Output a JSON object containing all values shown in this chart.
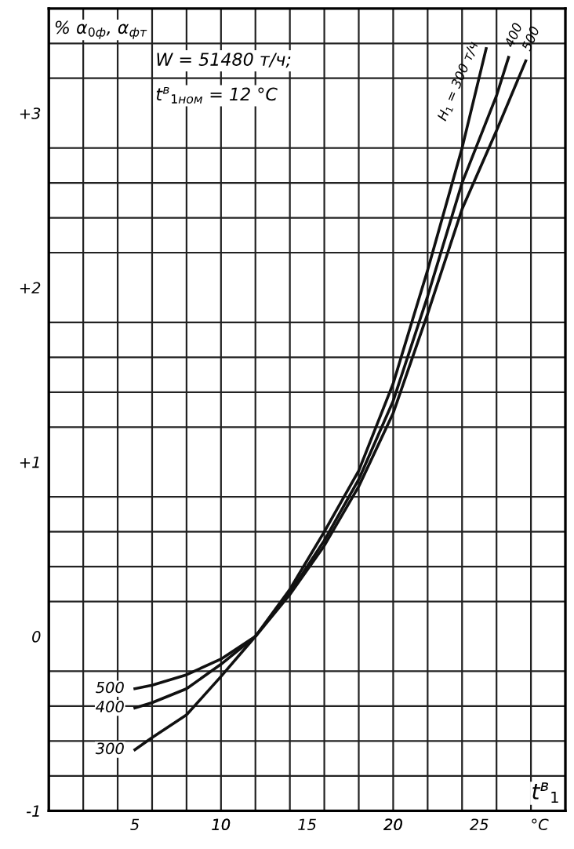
{
  "chart_data": {
    "type": "line",
    "ylabel": "% α$_{0ф}$, α$_{фт}$",
    "xlabel": "t$^{в}$$_{1}$",
    "annotations": [
      "W = 51480 т/ч;",
      "t$^{в}$$_{1ном}$ = 12 °C",
      {
        "text": "Н$_{1}$ = 300 т/ч",
        "x": 25.4,
        "y": 3.37
      },
      {
        "text": "400",
        "x": 26.7,
        "y": 3.32
      },
      {
        "text": "500",
        "x": 27.7,
        "y": 3.3
      },
      {
        "text": "500",
        "x": 5,
        "y": -0.3
      },
      {
        "text": "400",
        "x": 5,
        "y": -0.41
      },
      {
        "text": "300",
        "x": 5,
        "y": -0.65
      }
    ],
    "series": [
      {
        "color": "#111111",
        "x": [
          5,
          6,
          8,
          10,
          12,
          14,
          16,
          18,
          20,
          22,
          24,
          25.4
        ],
        "values": [
          -0.65,
          -0.58,
          -0.45,
          -0.23,
          0,
          0.27,
          0.6,
          0.95,
          1.45,
          2.1,
          2.8,
          3.37
        ]
      },
      {
        "color": "#111111",
        "x": [
          5,
          6,
          8,
          10,
          12,
          14,
          16,
          18,
          20,
          22,
          24,
          26,
          26.7
        ],
        "values": [
          -0.41,
          -0.38,
          -0.3,
          -0.16,
          0,
          0.25,
          0.55,
          0.9,
          1.35,
          1.95,
          2.6,
          3.1,
          3.32
        ]
      },
      {
        "color": "#111111",
        "x": [
          5,
          6,
          8,
          10,
          12,
          14,
          16,
          18,
          20,
          22,
          24,
          26,
          27.7
        ],
        "values": [
          -0.3,
          -0.28,
          -0.22,
          -0.13,
          0,
          0.24,
          0.52,
          0.86,
          1.28,
          1.85,
          2.45,
          2.9,
          3.3
        ]
      }
    ],
    "xlim": [
      0,
      30
    ],
    "ylim": [
      -1,
      3.6
    ],
    "xticks": [
      {
        "value": 2,
        "label": null
      },
      {
        "value": 4,
        "label": null
      },
      {
        "value": 5,
        "label": "5"
      },
      {
        "value": 6,
        "label": null
      },
      {
        "value": 8,
        "label": null
      },
      {
        "value": 10,
        "label": null
      },
      {
        "value": 10,
        "label": "10"
      },
      {
        "value": 12,
        "label": null
      },
      {
        "value": 14,
        "label": null
      },
      {
        "value": 15,
        "label": "15"
      },
      {
        "value": 16,
        "label": null
      },
      {
        "value": 18,
        "label": null
      },
      {
        "value": 20,
        "label": null
      },
      {
        "value": 20,
        "label": "20"
      },
      {
        "value": 22,
        "label": null
      },
      {
        "value": 24,
        "label": null
      },
      {
        "value": 25,
        "label": "25"
      },
      {
        "value": 26,
        "label": null
      },
      {
        "value": 28,
        "label": null
      },
      {
        "value": 28.5,
        "label": "°C"
      }
    ],
    "yticks": [
      {
        "value": -1,
        "label": "-1"
      },
      {
        "value": -0.8,
        "label": null
      },
      {
        "value": -0.6,
        "label": null
      },
      {
        "value": -0.4,
        "label": null
      },
      {
        "value": -0.2,
        "label": null
      },
      {
        "value": 0,
        "label": "0"
      },
      {
        "value": 0.2,
        "label": null
      },
      {
        "value": 0.4,
        "label": null
      },
      {
        "value": 0.6,
        "label": null
      },
      {
        "value": 0.8,
        "label": null
      },
      {
        "value": 1,
        "label": "+1"
      },
      {
        "value": 1.2,
        "label": null
      },
      {
        "value": 1.4,
        "label": null
      },
      {
        "value": 1.6,
        "label": null
      },
      {
        "value": 1.8,
        "label": null
      },
      {
        "value": 2,
        "label": "+2"
      },
      {
        "value": 2.2,
        "label": null
      },
      {
        "value": 2.4,
        "label": null
      },
      {
        "value": 2.6,
        "label": null
      },
      {
        "value": 2.8,
        "label": null
      },
      {
        "value": 3,
        "label": "+3"
      },
      {
        "value": 3.2,
        "label": null
      },
      {
        "value": 3.4,
        "label": null
      }
    ],
    "grid": true,
    "marker": "none",
    "line_style": "solid"
  }
}
